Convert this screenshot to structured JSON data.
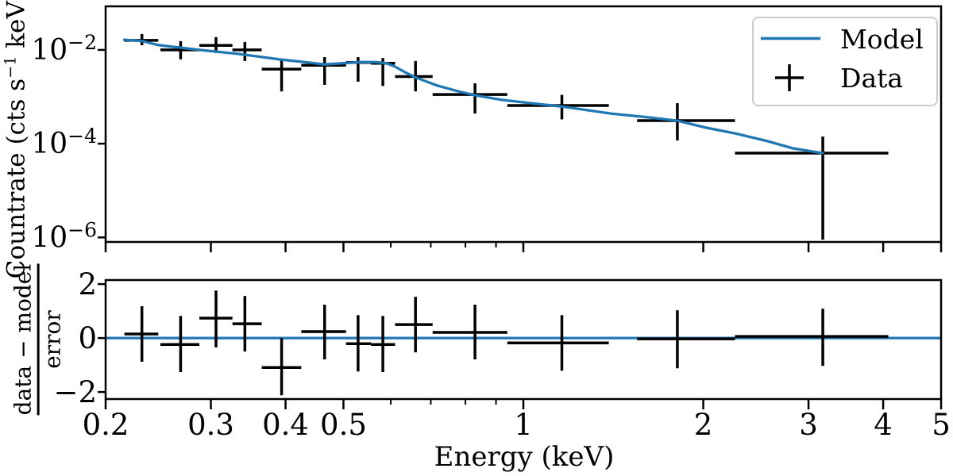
{
  "figure": {
    "xlabel": "Energy (keV)",
    "background": "#ffffff",
    "frame_color": "#000000"
  },
  "legend": {
    "position": "upper right",
    "border_color": "#cccccc",
    "items": [
      {
        "label": "Model",
        "marker": "line",
        "color": "#1f77b4"
      },
      {
        "label": "Data",
        "marker": "cross",
        "color": "#000000"
      }
    ]
  },
  "x_axis": {
    "label": "Energy (keV)",
    "scale": "log",
    "range": [
      0.2,
      5
    ],
    "major_ticks": [
      {
        "value": 0.2,
        "label": "0.2"
      },
      {
        "value": 0.3,
        "label": "0.3"
      },
      {
        "value": 0.4,
        "label": "0.4"
      },
      {
        "value": 0.5,
        "label": "0.5"
      },
      {
        "value": 1,
        "label": "1"
      },
      {
        "value": 2,
        "label": "2"
      },
      {
        "value": 3,
        "label": "3"
      },
      {
        "value": 4,
        "label": "4"
      },
      {
        "value": 5,
        "label": "5"
      }
    ],
    "minor_ticks": [
      0.6,
      0.7,
      0.8,
      0.9
    ]
  },
  "chart_data": [
    {
      "id": "spectrum",
      "type": "line",
      "xscale": "log",
      "yscale": "log",
      "ylabel_parts": [
        {
          "text": "Countrate (cts s"
        },
        {
          "text": "−1",
          "sup": true
        },
        {
          "text": " keV"
        },
        {
          "text": "−1",
          "sup": true
        },
        {
          "text": ")"
        }
      ],
      "xlim": [
        0.2,
        5
      ],
      "ylim": [
        8e-07,
        0.085
      ],
      "grid": false,
      "y_ticks": [
        {
          "value": 0.01,
          "base": "10",
          "exp": "−2"
        },
        {
          "value": 0.0001,
          "base": "10",
          "exp": "−4"
        },
        {
          "value": 1e-06,
          "base": "10",
          "exp": "−6"
        }
      ],
      "series": [
        {
          "name": "Model",
          "type": "line",
          "color": "#1f77b4",
          "x": [
            0.215,
            0.23,
            0.245,
            0.287,
            0.334,
            0.39,
            0.425,
            0.465,
            0.5,
            0.535,
            0.565,
            0.59,
            0.61,
            0.635,
            0.66,
            0.718,
            0.78,
            0.83,
            0.92,
            1.03,
            1.16,
            1.4,
            1.6,
            1.81,
            2.02,
            2.26,
            2.55,
            2.83,
            3.17
          ],
          "y": [
            0.0165,
            0.0155,
            0.0127,
            0.01,
            0.0082,
            0.0063,
            0.0056,
            0.0049,
            0.0052,
            0.0055,
            0.0055,
            0.0052,
            0.0044,
            0.0033,
            0.0026,
            0.00173,
            0.0013,
            0.00108,
            0.00086,
            0.00073,
            0.00062,
            0.00044,
            0.00037,
            0.00031,
            0.00022,
            0.000166,
            0.000115,
            7.9e-05,
            6.3e-05
          ]
        },
        {
          "name": "Data",
          "type": "errorbar",
          "color": "#000000",
          "points": [
            {
              "x": 0.23,
              "xlo": 0.215,
              "xhi": 0.245,
              "y": 0.016,
              "ylo": 0.0126,
              "yhi": 0.0218
            },
            {
              "x": 0.267,
              "xlo": 0.247,
              "xhi": 0.287,
              "y": 0.01,
              "ylo": 0.0063,
              "yhi": 0.0154
            },
            {
              "x": 0.306,
              "xlo": 0.287,
              "xhi": 0.326,
              "y": 0.0125,
              "ylo": 0.0086,
              "yhi": 0.0187
            },
            {
              "x": 0.342,
              "xlo": 0.326,
              "xhi": 0.365,
              "y": 0.01,
              "ylo": 0.0058,
              "yhi": 0.0148
            },
            {
              "x": 0.394,
              "xlo": 0.365,
              "xhi": 0.425,
              "y": 0.0039,
              "ylo": 0.0013,
              "yhi": 0.0063
            },
            {
              "x": 0.465,
              "xlo": 0.425,
              "xhi": 0.505,
              "y": 0.0047,
              "ylo": 0.0018,
              "yhi": 0.007
            },
            {
              "x": 0.529,
              "xlo": 0.505,
              "xhi": 0.556,
              "y": 0.0054,
              "ylo": 0.0021,
              "yhi": 0.007
            },
            {
              "x": 0.582,
              "xlo": 0.556,
              "xhi": 0.61,
              "y": 0.0052,
              "ylo": 0.0017,
              "yhi": 0.0067
            },
            {
              "x": 0.66,
              "xlo": 0.61,
              "xhi": 0.705,
              "y": 0.0027,
              "ylo": 0.0013,
              "yhi": 0.0058
            },
            {
              "x": 0.83,
              "xlo": 0.705,
              "xhi": 0.94,
              "y": 0.00112,
              "ylo": 0.00044,
              "yhi": 0.00194
            },
            {
              "x": 1.16,
              "xlo": 0.94,
              "xhi": 1.39,
              "y": 0.00065,
              "ylo": 0.00033,
              "yhi": 0.0011
            },
            {
              "x": 1.81,
              "xlo": 1.55,
              "xhi": 2.26,
              "y": 0.00031,
              "ylo": 0.000117,
              "yhi": 0.00073
            },
            {
              "x": 3.17,
              "xlo": 2.26,
              "xhi": 4.08,
              "y": 6.3e-05,
              "ylo": 9e-07,
              "yhi": 0.000142
            }
          ]
        }
      ]
    },
    {
      "id": "residuals",
      "type": "errorbar",
      "xscale": "log",
      "yscale": "linear",
      "ylabel_fraction": {
        "numerator": "data − model",
        "denominator": "error"
      },
      "xlim": [
        0.2,
        5
      ],
      "ylim": [
        -2.26,
        2.15
      ],
      "grid": false,
      "y_ticks": [
        {
          "value": 2,
          "label": "2"
        },
        {
          "value": 0,
          "label": "0"
        },
        {
          "value": -2,
          "label": "−2"
        }
      ],
      "zero_line": {
        "y": 0,
        "color": "#1f77b4"
      },
      "points": [
        {
          "x": 0.23,
          "xlo": 0.215,
          "xhi": 0.245,
          "y": 0.15,
          "ylo": -0.88,
          "yhi": 1.18
        },
        {
          "x": 0.267,
          "xlo": 0.247,
          "xhi": 0.287,
          "y": -0.24,
          "ylo": -1.26,
          "yhi": 0.82
        },
        {
          "x": 0.306,
          "xlo": 0.287,
          "xhi": 0.326,
          "y": 0.74,
          "ylo": -0.35,
          "yhi": 1.76
        },
        {
          "x": 0.342,
          "xlo": 0.326,
          "xhi": 0.365,
          "y": 0.53,
          "ylo": -0.5,
          "yhi": 1.56
        },
        {
          "x": 0.394,
          "xlo": 0.365,
          "xhi": 0.425,
          "y": -1.09,
          "ylo": -2.12,
          "yhi": 0.0
        },
        {
          "x": 0.465,
          "xlo": 0.425,
          "xhi": 0.505,
          "y": 0.24,
          "ylo": -0.79,
          "yhi": 1.24
        },
        {
          "x": 0.529,
          "xlo": 0.505,
          "xhi": 0.556,
          "y": -0.21,
          "ylo": -1.24,
          "yhi": 0.85
        },
        {
          "x": 0.582,
          "xlo": 0.556,
          "xhi": 0.61,
          "y": -0.24,
          "ylo": -1.26,
          "yhi": 0.82
        },
        {
          "x": 0.66,
          "xlo": 0.61,
          "xhi": 0.705,
          "y": 0.5,
          "ylo": -0.53,
          "yhi": 1.53
        },
        {
          "x": 0.83,
          "xlo": 0.705,
          "xhi": 0.94,
          "y": 0.21,
          "ylo": -0.79,
          "yhi": 1.24
        },
        {
          "x": 1.16,
          "xlo": 0.94,
          "xhi": 1.39,
          "y": -0.18,
          "ylo": -1.21,
          "yhi": 0.85
        },
        {
          "x": 1.81,
          "xlo": 1.55,
          "xhi": 2.26,
          "y": -0.03,
          "ylo": -1.12,
          "yhi": 1.03
        },
        {
          "x": 3.17,
          "xlo": 2.26,
          "xhi": 4.08,
          "y": 0.06,
          "ylo": -1.03,
          "yhi": 1.09
        }
      ]
    }
  ]
}
